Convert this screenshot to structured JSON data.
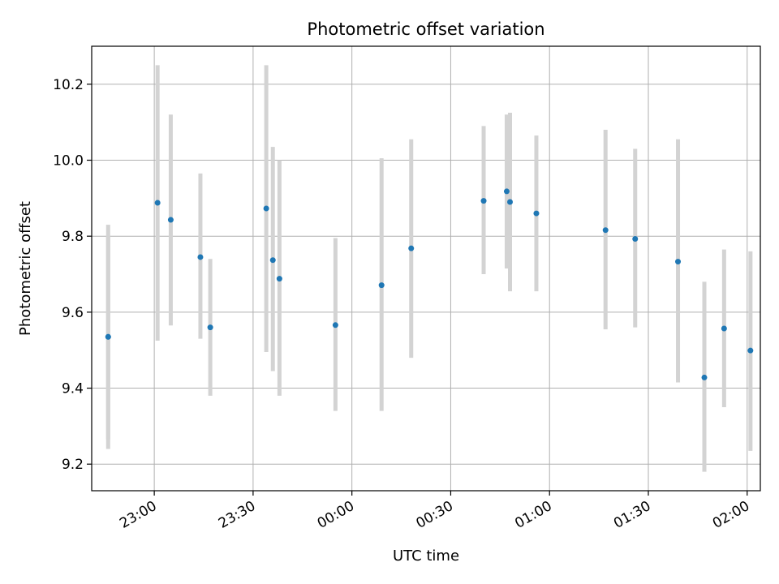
{
  "chart_data": {
    "type": "scatter",
    "title": "Photometric offset variation",
    "xlabel": "UTC time",
    "ylabel": "Photometric offset",
    "x_axis": {
      "kind": "time",
      "xlim": [
        "22:41",
        "02:04"
      ],
      "ticks": [
        "23:00",
        "23:30",
        "00:00",
        "00:30",
        "01:00",
        "01:30",
        "02:00"
      ]
    },
    "ylim": [
      9.13,
      10.3
    ],
    "y_ticks": [
      9.2,
      9.4,
      9.6,
      9.8,
      10.0,
      10.2
    ],
    "grid": true,
    "colors": {
      "points": "#1f77b4",
      "error_bars": "#d3d3d3",
      "grid": "#b0b0b0"
    },
    "points": [
      {
        "x": "22:46",
        "y": 9.535,
        "err_low": 9.265,
        "err_high": 9.8
      },
      {
        "x": "22:46",
        "y": 9.535,
        "err_low": 9.24,
        "err_high": 9.83
      },
      {
        "x": "23:01",
        "y": 9.888,
        "err_low": 9.525,
        "err_high": 10.25
      },
      {
        "x": "23:05",
        "y": 9.843,
        "err_low": 9.565,
        "err_high": 10.12
      },
      {
        "x": "23:14",
        "y": 9.745,
        "err_low": 9.53,
        "err_high": 9.965
      },
      {
        "x": "23:17",
        "y": 9.56,
        "err_low": 9.38,
        "err_high": 9.74
      },
      {
        "x": "23:34",
        "y": 9.873,
        "err_low": 9.495,
        "err_high": 10.25
      },
      {
        "x": "23:36",
        "y": 9.737,
        "err_low": 9.445,
        "err_high": 10.035
      },
      {
        "x": "23:38",
        "y": 9.688,
        "err_low": 9.38,
        "err_high": 10.0
      },
      {
        "x": "23:55",
        "y": 9.566,
        "err_low": 9.34,
        "err_high": 9.795
      },
      {
        "x": "00:09",
        "y": 9.671,
        "err_low": 9.34,
        "err_high": 10.005
      },
      {
        "x": "00:18",
        "y": 9.768,
        "err_low": 9.48,
        "err_high": 10.055
      },
      {
        "x": "00:40",
        "y": 9.893,
        "err_low": 9.7,
        "err_high": 10.09
      },
      {
        "x": "00:47",
        "y": 9.918,
        "err_low": 9.715,
        "err_high": 10.12
      },
      {
        "x": "00:48",
        "y": 9.89,
        "err_low": 9.655,
        "err_high": 10.125
      },
      {
        "x": "00:56",
        "y": 9.86,
        "err_low": 9.655,
        "err_high": 10.065
      },
      {
        "x": "01:17",
        "y": 9.816,
        "err_low": 9.555,
        "err_high": 10.08
      },
      {
        "x": "01:26",
        "y": 9.793,
        "err_low": 9.56,
        "err_high": 10.03
      },
      {
        "x": "01:39",
        "y": 9.733,
        "err_low": 9.415,
        "err_high": 10.055
      },
      {
        "x": "01:47",
        "y": 9.428,
        "err_low": 9.18,
        "err_high": 9.68
      },
      {
        "x": "01:53",
        "y": 9.557,
        "err_low": 9.35,
        "err_high": 9.765
      },
      {
        "x": "02:01",
        "y": 9.499,
        "err_low": 9.235,
        "err_high": 9.76
      }
    ]
  }
}
